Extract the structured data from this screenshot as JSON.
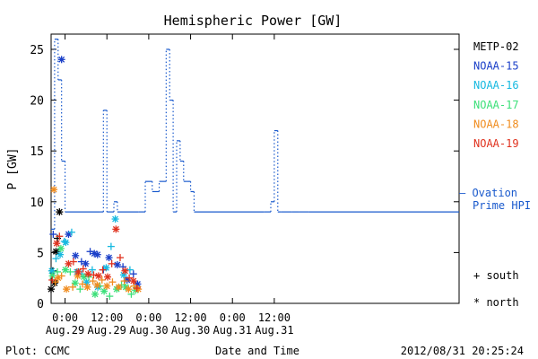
{
  "chart_data": {
    "type": "scatter",
    "title": "Hemispheric Power [GW]",
    "ylabel": "P [GW]",
    "xlabel": "Date and Time",
    "ylim": [
      0,
      26.5
    ],
    "y_ticks": [
      "0",
      "5",
      "10",
      "15",
      "20",
      "25"
    ],
    "x_range_hours": [
      -4,
      113
    ],
    "x_ticks": [
      {
        "hour": 0,
        "time": "0:00",
        "date": "Aug.29"
      },
      {
        "hour": 12,
        "time": "12:00",
        "date": "Aug.29"
      },
      {
        "hour": 24,
        "time": "0:00",
        "date": "Aug.30"
      },
      {
        "hour": 36,
        "time": "12:00",
        "date": "Aug.30"
      },
      {
        "hour": 48,
        "time": "0:00",
        "date": "Aug.31"
      },
      {
        "hour": 60,
        "time": "12:00",
        "date": "Aug.31"
      }
    ],
    "x_unit": "hours since 2012-08-29 00:00 UT",
    "legend": [
      {
        "name": "METP-02",
        "color": "#000000"
      },
      {
        "name": "NOAA-15",
        "color": "#1a3fc8"
      },
      {
        "name": "NOAA-16",
        "color": "#17b9e0"
      },
      {
        "name": "NOAA-17",
        "color": "#3ce07a"
      },
      {
        "name": "NOAA-18",
        "color": "#f08c1e"
      },
      {
        "name": "NOAA-19",
        "color": "#e0321e"
      }
    ],
    "ovation": {
      "label": "— Ovation Prime HPI",
      "label_line1": "— Ovation",
      "label_line2": "Prime HPI",
      "color": "#1a5acd",
      "steps": [
        [
          -4,
          7.3
        ],
        [
          -3,
          26
        ],
        [
          -2,
          22
        ],
        [
          -1,
          14
        ],
        [
          0,
          9
        ],
        [
          10,
          9
        ],
        [
          11,
          19
        ],
        [
          12,
          9
        ],
        [
          14,
          10
        ],
        [
          15,
          9
        ],
        [
          21,
          9
        ],
        [
          23,
          12
        ],
        [
          25,
          11
        ],
        [
          27,
          12
        ],
        [
          29,
          25
        ],
        [
          30,
          20
        ],
        [
          31,
          9
        ],
        [
          32,
          16
        ],
        [
          33,
          14
        ],
        [
          34,
          12
        ],
        [
          35,
          12
        ],
        [
          36,
          11
        ],
        [
          37,
          9
        ],
        [
          57,
          9
        ],
        [
          59,
          10
        ],
        [
          60,
          17
        ],
        [
          61,
          9
        ],
        [
          62,
          9
        ],
        [
          65,
          9
        ],
        [
          67,
          9
        ],
        [
          70,
          9
        ]
      ]
    },
    "series": [
      {
        "name": "METP-02",
        "color": "#000000",
        "points": [
          [
            -4,
            1.4,
            "n"
          ],
          [
            -3.5,
            3.2,
            "+"
          ],
          [
            -3,
            2.0,
            "n"
          ],
          [
            -2.6,
            5.1,
            "n"
          ],
          [
            -2.2,
            6.4,
            "+"
          ],
          [
            -1.6,
            9.0,
            "n"
          ]
        ]
      },
      {
        "name": "NOAA-15",
        "color": "#1a3fc8",
        "points": [
          [
            -3.4,
            6.8,
            "+"
          ],
          [
            -1,
            24,
            "n"
          ],
          [
            1,
            6.8,
            "n"
          ],
          [
            3,
            4.7,
            "n"
          ],
          [
            4.7,
            4.1,
            "+"
          ],
          [
            5.9,
            3.9,
            "n"
          ],
          [
            7.2,
            5.1,
            "+"
          ],
          [
            8.4,
            4.9,
            "n"
          ],
          [
            9.3,
            4.8,
            "n"
          ],
          [
            11.0,
            3.3,
            "+"
          ],
          [
            12.6,
            4.5,
            "n"
          ],
          [
            15.0,
            3.8,
            "n"
          ],
          [
            16.6,
            3.6,
            "+"
          ],
          [
            17.8,
            2.3,
            "n"
          ],
          [
            19.6,
            2.9,
            "+"
          ],
          [
            20.8,
            1.9,
            "n"
          ]
        ]
      },
      {
        "name": "NOAA-16",
        "color": "#17b9e0",
        "points": [
          [
            -3.8,
            3.2,
            "n"
          ],
          [
            -2.6,
            4.4,
            "+"
          ],
          [
            -1.4,
            4.8,
            "n"
          ],
          [
            -0.2,
            6.1,
            "+"
          ],
          [
            0.2,
            6.0,
            "n"
          ],
          [
            1.9,
            7.0,
            "+"
          ],
          [
            3.4,
            3.1,
            "n"
          ],
          [
            4.8,
            2.9,
            "+"
          ],
          [
            6.2,
            2.1,
            "n"
          ],
          [
            7.8,
            3.3,
            "+"
          ],
          [
            9.4,
            1.6,
            "n"
          ],
          [
            11.8,
            3.5,
            "n"
          ],
          [
            13.2,
            5.6,
            "+"
          ],
          [
            14.4,
            8.3,
            "n"
          ],
          [
            16.8,
            2.8,
            "n"
          ],
          [
            18.6,
            3.3,
            "+"
          ]
        ]
      },
      {
        "name": "NOAA-17",
        "color": "#3ce07a",
        "points": [
          [
            -3.6,
            2.7,
            "n"
          ],
          [
            -2.2,
            3.1,
            "+"
          ],
          [
            -1.2,
            5.4,
            "n"
          ],
          [
            0.1,
            3.3,
            "n"
          ],
          [
            1.5,
            3.1,
            "+"
          ],
          [
            2.9,
            2.0,
            "n"
          ],
          [
            4.3,
            1.4,
            "+"
          ],
          [
            5.4,
            2.6,
            "n"
          ],
          [
            6.8,
            2.6,
            "+"
          ],
          [
            8.6,
            0.9,
            "n"
          ],
          [
            10.0,
            1.7,
            "+"
          ],
          [
            11.2,
            1.2,
            "n"
          ],
          [
            12.8,
            0.7,
            "+"
          ],
          [
            14.8,
            1.4,
            "n"
          ],
          [
            16.2,
            1.8,
            "+"
          ],
          [
            17.4,
            1.6,
            "n"
          ],
          [
            19.0,
            0.9,
            "+"
          ],
          [
            20.2,
            1.3,
            "n"
          ]
        ]
      },
      {
        "name": "NOAA-18",
        "color": "#f08c1e",
        "points": [
          [
            -3.2,
            11.2,
            "n"
          ],
          [
            -2.8,
            2.1,
            "+"
          ],
          [
            -2.0,
            2.5,
            "n"
          ],
          [
            -1.0,
            2.7,
            "+"
          ],
          [
            0.4,
            1.4,
            "n"
          ],
          [
            2.2,
            1.6,
            "+"
          ],
          [
            3.6,
            2.7,
            "n"
          ],
          [
            5.0,
            1.9,
            "+"
          ],
          [
            6.4,
            1.6,
            "n"
          ],
          [
            8.0,
            2.2,
            "+"
          ],
          [
            9.2,
            1.8,
            "n"
          ],
          [
            10.6,
            2.3,
            "+"
          ],
          [
            12.0,
            1.7,
            "n"
          ],
          [
            13.6,
            2.1,
            "+"
          ],
          [
            15.4,
            1.6,
            "n"
          ],
          [
            17.0,
            2.2,
            "+"
          ],
          [
            18.2,
            1.4,
            "n"
          ],
          [
            19.8,
            1.7,
            "+"
          ],
          [
            21.0,
            1.4,
            "n"
          ]
        ]
      },
      {
        "name": "NOAA-19",
        "color": "#e0321e",
        "points": [
          [
            -3.7,
            2.3,
            "+"
          ],
          [
            -2.4,
            5.9,
            "n"
          ],
          [
            -1.6,
            6.6,
            "+"
          ],
          [
            1.0,
            3.9,
            "n"
          ],
          [
            2.4,
            4.1,
            "+"
          ],
          [
            3.8,
            3.1,
            "n"
          ],
          [
            5.2,
            3.4,
            "+"
          ],
          [
            6.6,
            2.9,
            "n"
          ],
          [
            8.2,
            2.8,
            "+"
          ],
          [
            9.6,
            2.7,
            "n"
          ],
          [
            10.8,
            3.3,
            "+"
          ],
          [
            12.2,
            2.6,
            "n"
          ],
          [
            13.4,
            3.9,
            "+"
          ],
          [
            14.6,
            7.3,
            "n"
          ],
          [
            15.8,
            4.5,
            "+"
          ],
          [
            17.2,
            3.2,
            "n"
          ],
          [
            18.4,
            2.5,
            "+"
          ],
          [
            19.6,
            2.2,
            "n"
          ],
          [
            20.6,
            1.5,
            "+"
          ]
        ]
      }
    ],
    "symbol_key": {
      "south": "+ south",
      "north": "* north"
    }
  },
  "footer": {
    "source": "Plot: CCMC",
    "timestamp": "2012/08/31  20:25:24"
  }
}
